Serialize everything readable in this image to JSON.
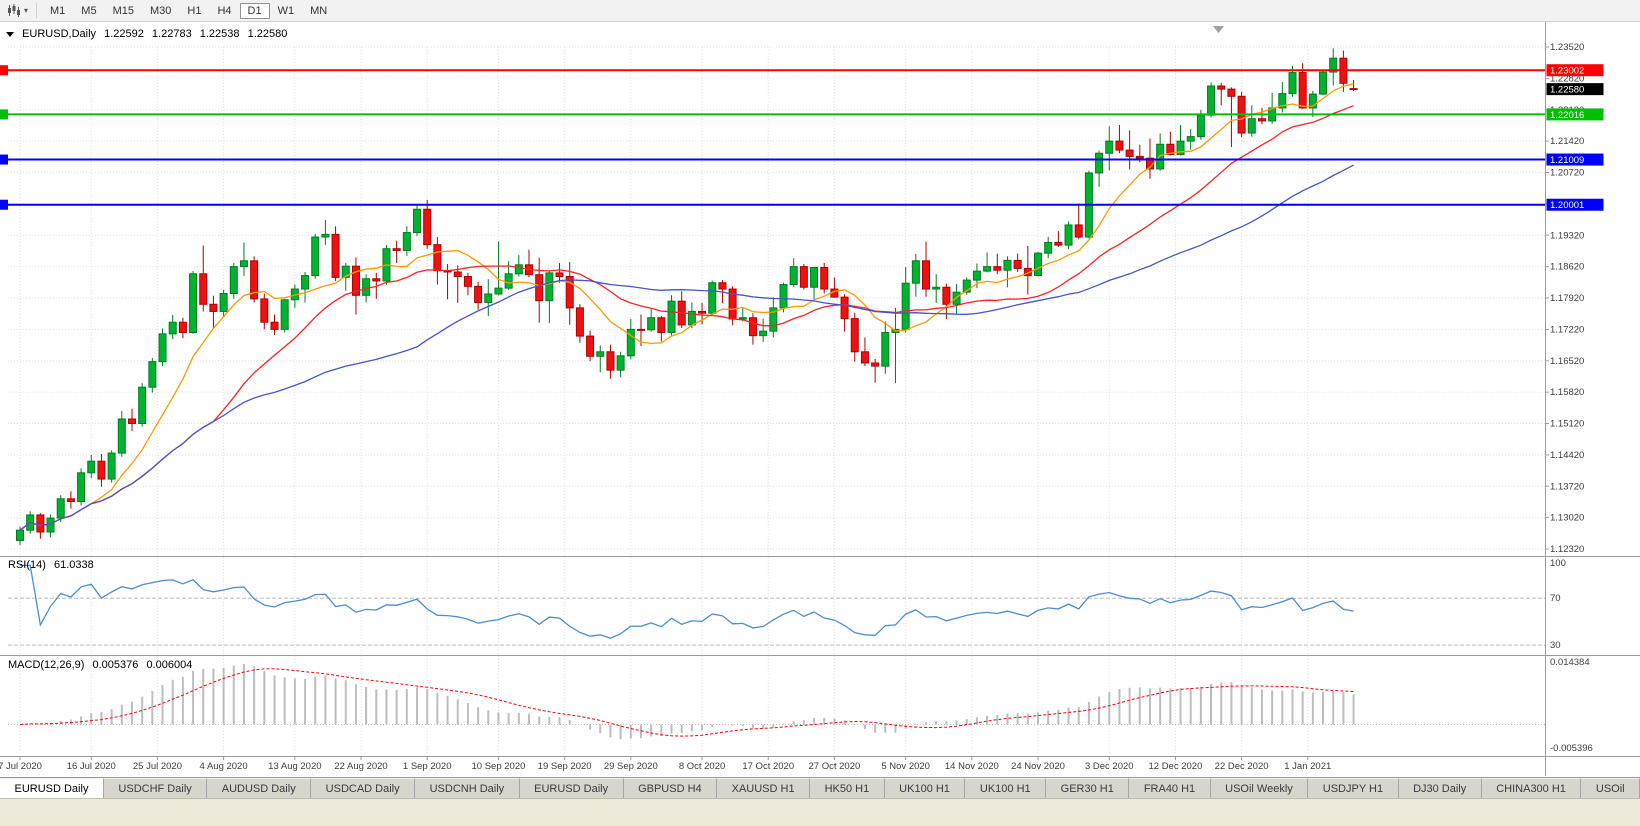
{
  "icons": {
    "dropdown": "▾"
  },
  "toolbar": {
    "timeframes": {
      "items": [
        "M1",
        "M5",
        "M15",
        "M30",
        "H1",
        "H4",
        "D1",
        "W1",
        "MN"
      ],
      "active": "D1"
    }
  },
  "chart": {
    "symbol_title": "EURUSD,Daily",
    "ohlc": {
      "open": "1.22592",
      "high": "1.22783",
      "low": "1.22538",
      "close": "1.22580"
    }
  },
  "indicators": {
    "rsi": {
      "label": "RSI(14)",
      "value": "61.0338",
      "axis_labels": [
        "100",
        "70",
        "30"
      ]
    },
    "macd": {
      "label": "MACD(12,26,9)",
      "value_main": "0.005376",
      "value_signal": "0.006004",
      "axis_top": "0.014384",
      "axis_bottom": "-0.005396"
    }
  },
  "chart_data": {
    "type": "candlestick",
    "symbol": "EURUSD",
    "period": "Daily",
    "y_ticks": [
      1.2352,
      1.2282,
      1.2212,
      1.2142,
      1.2072,
      1.2002,
      1.1932,
      1.1862,
      1.1792,
      1.1722,
      1.1652,
      1.1582,
      1.1512,
      1.1442,
      1.1372,
      1.1302,
      1.1232
    ],
    "x_labels": [
      {
        "text": "7 Jul 2020",
        "i": 0
      },
      {
        "text": "16 Jul 2020",
        "i": 7
      },
      {
        "text": "25 Jul 2020",
        "i": 13.5
      },
      {
        "text": "4 Aug 2020",
        "i": 20
      },
      {
        "text": "13 Aug 2020",
        "i": 27
      },
      {
        "text": "22 Aug 2020",
        "i": 33.5
      },
      {
        "text": "1 Sep 2020",
        "i": 40
      },
      {
        "text": "10 Sep 2020",
        "i": 47
      },
      {
        "text": "19 Sep 2020",
        "i": 53.5
      },
      {
        "text": "29 Sep 2020",
        "i": 60
      },
      {
        "text": "8 Oct 2020",
        "i": 67
      },
      {
        "text": "17 Oct 2020",
        "i": 73.5
      },
      {
        "text": "27 Oct 2020",
        "i": 80
      },
      {
        "text": "5 Nov 2020",
        "i": 87
      },
      {
        "text": "14 Nov 2020",
        "i": 93.5
      },
      {
        "text": "24 Nov 2020",
        "i": 100
      },
      {
        "text": "3 Dec 2020",
        "i": 107
      },
      {
        "text": "12 Dec 2020",
        "i": 113.5
      },
      {
        "text": "22 Dec 2020",
        "i": 120
      },
      {
        "text": "1 Jan 2021",
        "i": 126.5
      }
    ],
    "hlines": [
      {
        "price": 1.23002,
        "color": "#FF0000"
      },
      {
        "price": 1.22016,
        "color": "#00BE00"
      },
      {
        "price": 1.21009,
        "color": "#0000FF"
      },
      {
        "price": 1.20001,
        "color": "#0000FF"
      }
    ],
    "current_price": 1.2258,
    "moving_averages": [
      {
        "period": 8,
        "key": "ma_fast"
      },
      {
        "period": 20,
        "key": "ma_mid"
      },
      {
        "period": 40,
        "key": "ma_slow"
      }
    ],
    "rsi": {
      "period": 14,
      "overbought": 70,
      "oversold": 30,
      "scale_max": 100,
      "scale_min": 25,
      "current": 61.0338
    },
    "macd": {
      "fast": 12,
      "slow": 26,
      "signal": 9,
      "axis_max": 0.014384,
      "axis_min": -0.005396,
      "current_main": 0.005376,
      "current_signal": 0.006004
    },
    "colors": {
      "up": "#00B232",
      "up_line": "#007D20",
      "down": "#EE1111",
      "down_line": "#B00000",
      "grid": "#E2E2E2",
      "sep": "#9C9C9C",
      "tick_text": "#3C3C3C",
      "ma_fast": "#FF9900",
      "ma_mid": "#FF2222",
      "ma_slow": "#4455CC",
      "rsi": "#4A8FD4",
      "rsi_level": "#BEBEBE",
      "macd_hist": "#BDBDBD",
      "macd_signal": "#FF0000",
      "current_tag": "#000000"
    },
    "candles": [
      [
        1.1251,
        1.1282,
        1.1241,
        1.1274
      ],
      [
        1.1274,
        1.1316,
        1.1266,
        1.1308
      ],
      [
        1.1308,
        1.1312,
        1.1255,
        1.127
      ],
      [
        1.127,
        1.1309,
        1.1258,
        1.1301
      ],
      [
        1.1301,
        1.1352,
        1.1292,
        1.1344
      ],
      [
        1.1344,
        1.1361,
        1.1322,
        1.1338
      ],
      [
        1.1338,
        1.1412,
        1.1329,
        1.1402
      ],
      [
        1.1402,
        1.1442,
        1.139,
        1.1428
      ],
      [
        1.1428,
        1.1444,
        1.1371,
        1.1388
      ],
      [
        1.1388,
        1.1452,
        1.138,
        1.1446
      ],
      [
        1.1446,
        1.154,
        1.1438,
        1.1522
      ],
      [
        1.1522,
        1.1545,
        1.1495,
        1.1512
      ],
      [
        1.1512,
        1.1602,
        1.1505,
        1.1593
      ],
      [
        1.1593,
        1.1658,
        1.1581,
        1.165
      ],
      [
        1.165,
        1.1724,
        1.164,
        1.1712
      ],
      [
        1.1712,
        1.1754,
        1.17,
        1.1738
      ],
      [
        1.1738,
        1.1748,
        1.1702,
        1.1715
      ],
      [
        1.1715,
        1.1852,
        1.1712,
        1.1846
      ],
      [
        1.1846,
        1.1909,
        1.1762,
        1.1778
      ],
      [
        1.1778,
        1.1797,
        1.1723,
        1.1762
      ],
      [
        1.1762,
        1.181,
        1.175,
        1.1802
      ],
      [
        1.1802,
        1.187,
        1.179,
        1.1862
      ],
      [
        1.1862,
        1.1916,
        1.1841,
        1.1875
      ],
      [
        1.1875,
        1.1885,
        1.1782,
        1.179
      ],
      [
        1.179,
        1.1802,
        1.1722,
        1.1738
      ],
      [
        1.1738,
        1.1755,
        1.171,
        1.1722
      ],
      [
        1.1722,
        1.179,
        1.1715,
        1.1788
      ],
      [
        1.1788,
        1.1822,
        1.177,
        1.1812
      ],
      [
        1.1812,
        1.185,
        1.1782,
        1.1842
      ],
      [
        1.1842,
        1.1935,
        1.1835,
        1.1928
      ],
      [
        1.1928,
        1.1966,
        1.191,
        1.1934
      ],
      [
        1.1934,
        1.1952,
        1.183,
        1.1838
      ],
      [
        1.1838,
        1.187,
        1.1808,
        1.1863
      ],
      [
        1.1863,
        1.1882,
        1.1755,
        1.1798
      ],
      [
        1.1798,
        1.1845,
        1.1782,
        1.1835
      ],
      [
        1.1835,
        1.1848,
        1.179,
        1.183
      ],
      [
        1.183,
        1.191,
        1.1822,
        1.1902
      ],
      [
        1.1902,
        1.192,
        1.187,
        1.1898
      ],
      [
        1.1898,
        1.1952,
        1.1886,
        1.1938
      ],
      [
        1.1938,
        1.1998,
        1.193,
        1.199
      ],
      [
        1.199,
        1.2011,
        1.1902,
        1.1911
      ],
      [
        1.1911,
        1.1928,
        1.1822,
        1.1853
      ],
      [
        1.1853,
        1.1868,
        1.1789,
        1.185
      ],
      [
        1.185,
        1.1865,
        1.1781,
        1.184
      ],
      [
        1.184,
        1.1848,
        1.1798,
        1.1818
      ],
      [
        1.1818,
        1.1828,
        1.1766,
        1.1782
      ],
      [
        1.1782,
        1.1834,
        1.1752,
        1.1801
      ],
      [
        1.1801,
        1.1918,
        1.1798,
        1.1814
      ],
      [
        1.1814,
        1.1874,
        1.181,
        1.1846
      ],
      [
        1.1846,
        1.1888,
        1.184,
        1.1866
      ],
      [
        1.1866,
        1.19,
        1.1838,
        1.1844
      ],
      [
        1.1844,
        1.1882,
        1.1737,
        1.1786
      ],
      [
        1.1786,
        1.1852,
        1.1736,
        1.1848
      ],
      [
        1.1848,
        1.187,
        1.1826,
        1.184
      ],
      [
        1.184,
        1.1872,
        1.1732,
        1.177
      ],
      [
        1.177,
        1.1778,
        1.1692,
        1.1707
      ],
      [
        1.1707,
        1.1719,
        1.1651,
        1.1662
      ],
      [
        1.1662,
        1.1686,
        1.1626,
        1.1672
      ],
      [
        1.1672,
        1.1688,
        1.1612,
        1.1631
      ],
      [
        1.1631,
        1.1672,
        1.1615,
        1.1663
      ],
      [
        1.1663,
        1.1745,
        1.1655,
        1.1722
      ],
      [
        1.1722,
        1.1755,
        1.1685,
        1.1721
      ],
      [
        1.1721,
        1.1769,
        1.1717,
        1.1748
      ],
      [
        1.1748,
        1.1752,
        1.1695,
        1.1715
      ],
      [
        1.1715,
        1.1798,
        1.1708,
        1.1785
      ],
      [
        1.1785,
        1.1807,
        1.1725,
        1.1732
      ],
      [
        1.1732,
        1.1782,
        1.1725,
        1.1762
      ],
      [
        1.1762,
        1.1781,
        1.1733,
        1.1758
      ],
      [
        1.1758,
        1.1831,
        1.1752,
        1.1826
      ],
      [
        1.1826,
        1.1832,
        1.178,
        1.1812
      ],
      [
        1.1812,
        1.1818,
        1.1731,
        1.1745
      ],
      [
        1.1745,
        1.1772,
        1.174,
        1.1748
      ],
      [
        1.1748,
        1.1758,
        1.1688,
        1.1708
      ],
      [
        1.1708,
        1.1746,
        1.1694,
        1.1718
      ],
      [
        1.1718,
        1.1794,
        1.1704,
        1.177
      ],
      [
        1.177,
        1.1826,
        1.176,
        1.1822
      ],
      [
        1.1822,
        1.1881,
        1.1817,
        1.1862
      ],
      [
        1.1862,
        1.1868,
        1.1811,
        1.1816
      ],
      [
        1.1816,
        1.1862,
        1.1786,
        1.186
      ],
      [
        1.186,
        1.187,
        1.1802,
        1.1812
      ],
      [
        1.1812,
        1.1838,
        1.1793,
        1.1794
      ],
      [
        1.1794,
        1.18,
        1.1717,
        1.1746
      ],
      [
        1.1746,
        1.1759,
        1.165,
        1.1672
      ],
      [
        1.1672,
        1.1704,
        1.164,
        1.1647
      ],
      [
        1.1647,
        1.1656,
        1.1603,
        1.164
      ],
      [
        1.164,
        1.174,
        1.1623,
        1.1715
      ],
      [
        1.1715,
        1.177,
        1.1602,
        1.1722
      ],
      [
        1.1722,
        1.1861,
        1.1715,
        1.1825
      ],
      [
        1.1825,
        1.189,
        1.1795,
        1.1875
      ],
      [
        1.1875,
        1.1918,
        1.1795,
        1.1812
      ],
      [
        1.1812,
        1.1845,
        1.1781,
        1.1816
      ],
      [
        1.1816,
        1.1824,
        1.1745,
        1.1778
      ],
      [
        1.1778,
        1.1823,
        1.1757,
        1.1805
      ],
      [
        1.1805,
        1.1838,
        1.1799,
        1.1832
      ],
      [
        1.1832,
        1.1869,
        1.1814,
        1.1852
      ],
      [
        1.1852,
        1.1894,
        1.1849,
        1.1862
      ],
      [
        1.1862,
        1.1891,
        1.1845,
        1.1854
      ],
      [
        1.1854,
        1.1885,
        1.1816,
        1.1876
      ],
      [
        1.1876,
        1.1891,
        1.185,
        1.1858
      ],
      [
        1.1858,
        1.1908,
        1.18,
        1.1842
      ],
      [
        1.1842,
        1.1895,
        1.184,
        1.1892
      ],
      [
        1.1892,
        1.1929,
        1.1881,
        1.1916
      ],
      [
        1.1916,
        1.1941,
        1.1906,
        1.191
      ],
      [
        1.191,
        1.1963,
        1.1901,
        1.1955
      ],
      [
        1.1955,
        1.2003,
        1.1923,
        1.1928
      ],
      [
        1.1928,
        1.2076,
        1.1925,
        1.2071
      ],
      [
        1.2071,
        1.2121,
        1.204,
        1.2115
      ],
      [
        1.2115,
        1.2175,
        1.2077,
        1.2142
      ],
      [
        1.2142,
        1.2178,
        1.2115,
        1.2122
      ],
      [
        1.2122,
        1.2166,
        1.2079,
        1.2108
      ],
      [
        1.2108,
        1.2134,
        1.2095,
        1.2104
      ],
      [
        1.2104,
        1.2148,
        1.2058,
        1.208
      ],
      [
        1.208,
        1.2159,
        1.2076,
        1.2135
      ],
      [
        1.2135,
        1.2163,
        1.211,
        1.2112
      ],
      [
        1.2112,
        1.2178,
        1.211,
        1.2142
      ],
      [
        1.2142,
        1.2169,
        1.2123,
        1.2152
      ],
      [
        1.2152,
        1.2212,
        1.2145,
        1.22
      ],
      [
        1.22,
        1.2273,
        1.2195,
        1.2265
      ],
      [
        1.2265,
        1.2272,
        1.2222,
        1.2258
      ],
      [
        1.2258,
        1.2262,
        1.2129,
        1.2242
      ],
      [
        1.2242,
        1.2252,
        1.2151,
        1.216
      ],
      [
        1.216,
        1.2222,
        1.2152,
        1.2192
      ],
      [
        1.2192,
        1.2216,
        1.218,
        1.2187
      ],
      [
        1.2187,
        1.225,
        1.2181,
        1.2216
      ],
      [
        1.2216,
        1.2274,
        1.2206,
        1.2248
      ],
      [
        1.2248,
        1.231,
        1.2241,
        1.2295
      ],
      [
        1.2295,
        1.2316,
        1.2214,
        1.2216
      ],
      [
        1.2216,
        1.2254,
        1.2196,
        1.2247
      ],
      [
        1.2247,
        1.2302,
        1.2245,
        1.2296
      ],
      [
        1.2296,
        1.2349,
        1.2266,
        1.2327
      ],
      [
        1.2327,
        1.2344,
        1.2252,
        1.2271
      ],
      [
        1.22592,
        1.22783,
        1.22538,
        1.2258
      ]
    ]
  },
  "bottom_tabs": {
    "active_index": 0,
    "items": [
      "EURUSD Daily",
      "USDCHF Daily",
      "AUDUSD Daily",
      "USDCAD Daily",
      "USDCNH Daily",
      "EURUSD Daily",
      "GBPUSD H4",
      "XAUUSD H1",
      "HK50 H1",
      "UK100 H1",
      "UK100 H1",
      "GER30 H1",
      "FRA40 H1",
      "USOil Weekly",
      "USDJPY H1",
      "DJ30 Daily",
      "CHINA300 H1",
      "USOil"
    ]
  }
}
